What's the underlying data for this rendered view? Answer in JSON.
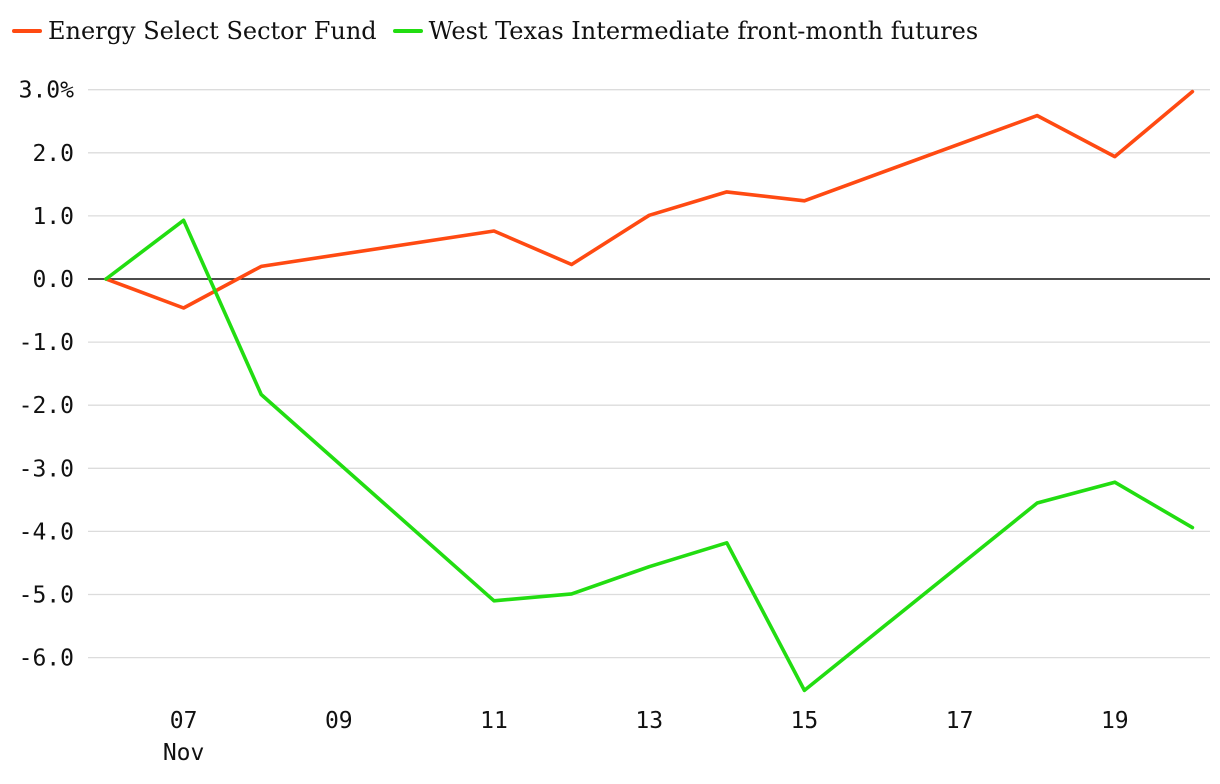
{
  "chart_data": {
    "type": "line",
    "title": "",
    "xlabel": "",
    "ylabel": "",
    "x": [
      "Nov 06",
      "Nov 07",
      "Nov 08",
      "Nov 11",
      "Nov 12",
      "Nov 13",
      "Nov 14",
      "Nov 15",
      "Nov 18",
      "Nov 19",
      "Nov 20"
    ],
    "series": [
      {
        "name": "Energy Select Sector Fund",
        "color": "#ff4a12",
        "values": [
          0.0,
          -0.46,
          0.2,
          0.76,
          0.23,
          1.01,
          1.38,
          1.24,
          2.59,
          1.94,
          2.97
        ]
      },
      {
        "name": "West Texas Intermediate front-month futures",
        "color": "#22dd11",
        "values": [
          0.0,
          0.93,
          -1.83,
          -5.1,
          -4.99,
          -4.56,
          -4.18,
          -6.52,
          -3.55,
          -3.22,
          -3.94
        ]
      }
    ],
    "ylim": [
      -6.6,
      3.0
    ],
    "y_ticks": [
      "3.0%",
      "2.0",
      "1.0",
      "0.0",
      "-1.0",
      "-2.0",
      "-3.0",
      "-4.0",
      "-5.0",
      "-6.0"
    ],
    "y_tick_values": [
      3,
      2,
      1,
      0,
      -1,
      -2,
      -3,
      -4,
      -5,
      -6
    ],
    "x_ticks": [
      {
        "label": "07",
        "sublabel": "Nov",
        "day": 7
      },
      {
        "label": "09",
        "sublabel": "",
        "day": 9
      },
      {
        "label": "11",
        "sublabel": "",
        "day": 11
      },
      {
        "label": "13",
        "sublabel": "",
        "day": 13
      },
      {
        "label": "15",
        "sublabel": "",
        "day": 15
      },
      {
        "label": "17",
        "sublabel": "",
        "day": 17
      },
      {
        "label": "19",
        "sublabel": "",
        "day": 19
      }
    ],
    "grid": true,
    "legend_position": "top-left"
  }
}
